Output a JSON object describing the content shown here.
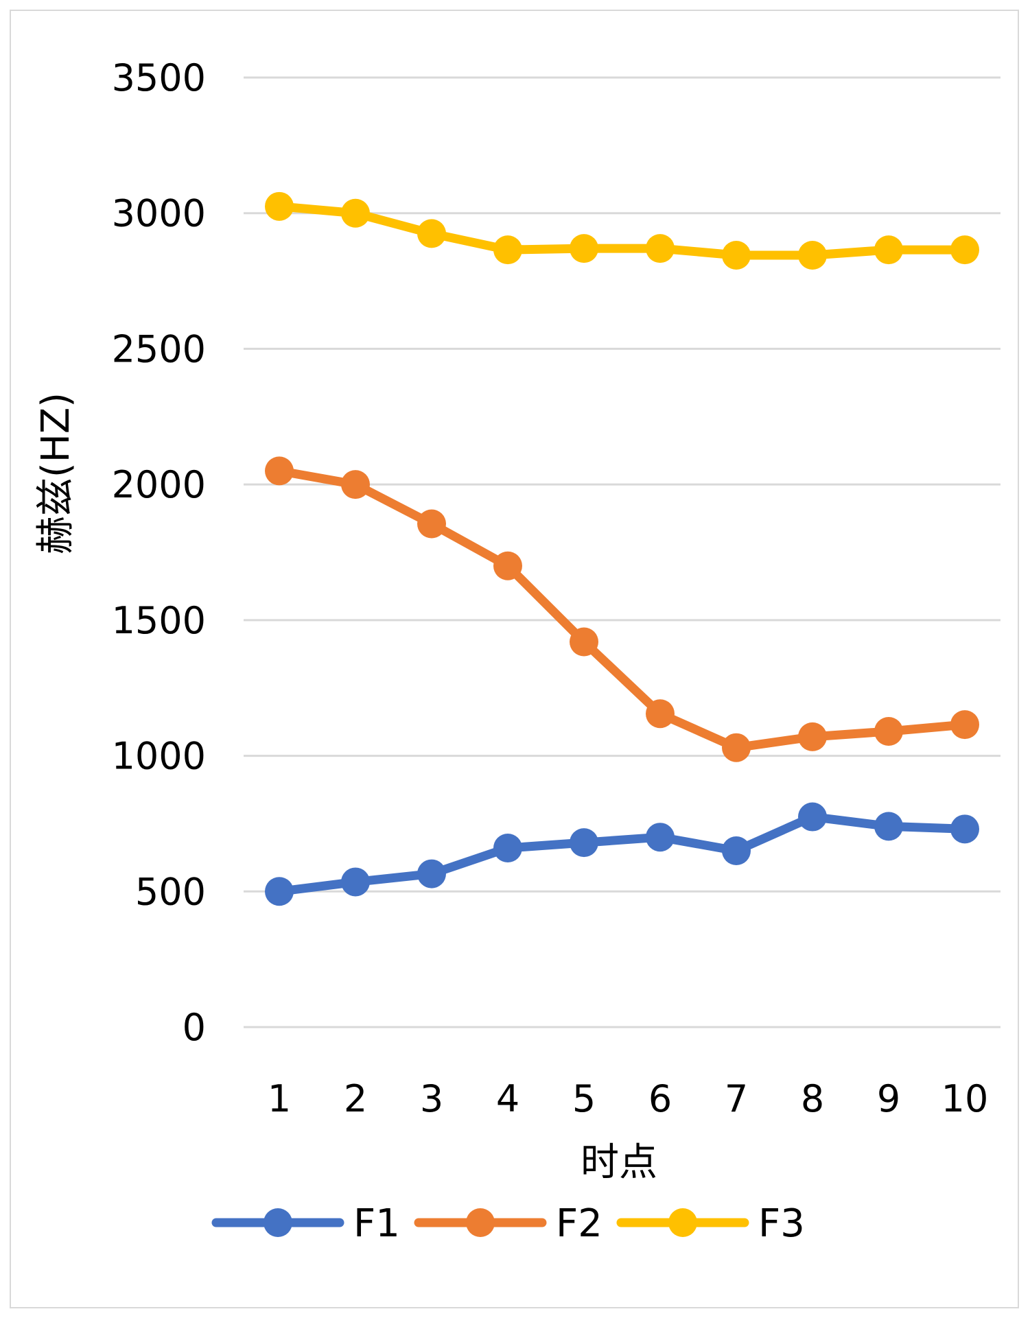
{
  "chart_data": {
    "type": "line",
    "title": "",
    "xlabel": "时点",
    "ylabel": "赫兹(HZ)",
    "categories": [
      "1",
      "2",
      "3",
      "4",
      "5",
      "6",
      "7",
      "8",
      "9",
      "10"
    ],
    "ylim": [
      0,
      3500
    ],
    "yticks": [
      0,
      500,
      1000,
      1500,
      2000,
      2500,
      3000,
      3500
    ],
    "grid": true,
    "legend_position": "bottom",
    "series": [
      {
        "name": "F1",
        "color": "#4472c4",
        "values": [
          500,
          535,
          565,
          660,
          680,
          700,
          650,
          775,
          740,
          730
        ]
      },
      {
        "name": "F2",
        "color": "#ed7d31",
        "values": [
          2050,
          2000,
          1855,
          1700,
          1420,
          1155,
          1030,
          1070,
          1090,
          1115
        ]
      },
      {
        "name": "F3",
        "color": "#ffc000",
        "values": [
          3025,
          3000,
          2925,
          2865,
          2870,
          2870,
          2845,
          2845,
          2865,
          2865
        ]
      }
    ]
  }
}
